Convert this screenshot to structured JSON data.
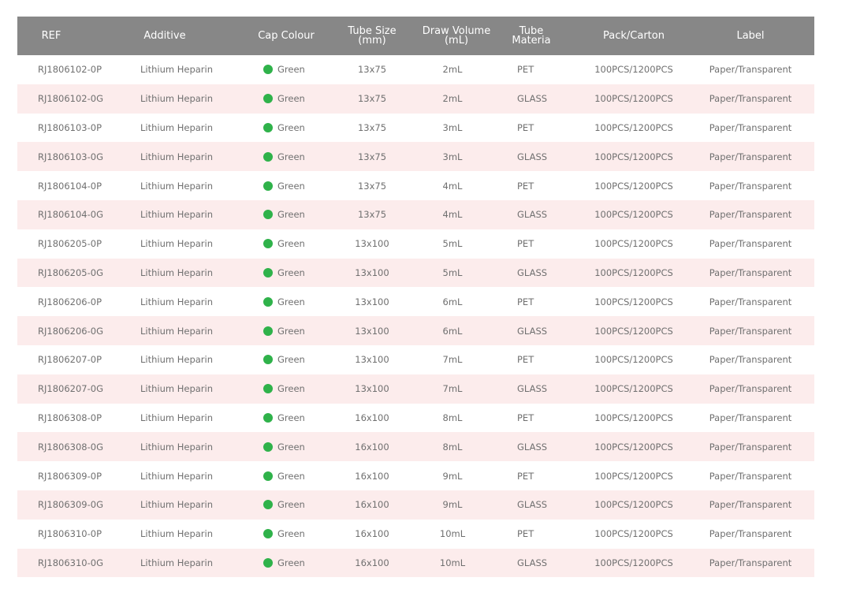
{
  "colors": {
    "header_bg": "#878787",
    "alt_row_bg": "#fcecec",
    "cap_green": "#2fb24a"
  },
  "header": {
    "ref": "REF",
    "additive": "Additive",
    "cap_colour": "Cap Colour",
    "tube_size": [
      "Tube Size",
      "(mm)"
    ],
    "draw_volume": [
      "Draw Volume",
      "(mL)"
    ],
    "tube_material": [
      "Tube",
      "Materia"
    ],
    "pack": "Pack/Carton",
    "label": "Label"
  },
  "rows": [
    {
      "ref": "RJ1806102-0P",
      "additive": "Lithium Heparin",
      "cap": "Green",
      "size": "13x75",
      "volume": "2mL",
      "material": "PET",
      "pack": "100PCS/1200PCS",
      "label": "Paper/Transparent"
    },
    {
      "ref": "RJ1806102-0G",
      "additive": "Lithium Heparin",
      "cap": "Green",
      "size": "13x75",
      "volume": "2mL",
      "material": "GLASS",
      "pack": "100PCS/1200PCS",
      "label": "Paper/Transparent"
    },
    {
      "ref": "RJ1806103-0P",
      "additive": "Lithium Heparin",
      "cap": "Green",
      "size": "13x75",
      "volume": "3mL",
      "material": "PET",
      "pack": "100PCS/1200PCS",
      "label": "Paper/Transparent"
    },
    {
      "ref": "RJ1806103-0G",
      "additive": "Lithium Heparin",
      "cap": "Green",
      "size": "13x75",
      "volume": "3mL",
      "material": "GLASS",
      "pack": "100PCS/1200PCS",
      "label": "Paper/Transparent"
    },
    {
      "ref": "RJ1806104-0P",
      "additive": "Lithium Heparin",
      "cap": "Green",
      "size": "13x75",
      "volume": "4mL",
      "material": "PET",
      "pack": "100PCS/1200PCS",
      "label": "Paper/Transparent"
    },
    {
      "ref": "RJ1806104-0G",
      "additive": "Lithium Heparin",
      "cap": "Green",
      "size": "13x75",
      "volume": "4mL",
      "material": "GLASS",
      "pack": "100PCS/1200PCS",
      "label": "Paper/Transparent"
    },
    {
      "ref": "RJ1806205-0P",
      "additive": "Lithium Heparin",
      "cap": "Green",
      "size": "13x100",
      "volume": "5mL",
      "material": "PET",
      "pack": "100PCS/1200PCS",
      "label": "Paper/Transparent"
    },
    {
      "ref": "RJ1806205-0G",
      "additive": "Lithium Heparin",
      "cap": "Green",
      "size": "13x100",
      "volume": "5mL",
      "material": "GLASS",
      "pack": "100PCS/1200PCS",
      "label": "Paper/Transparent"
    },
    {
      "ref": "RJ1806206-0P",
      "additive": "Lithium Heparin",
      "cap": "Green",
      "size": "13x100",
      "volume": "6mL",
      "material": "PET",
      "pack": "100PCS/1200PCS",
      "label": "Paper/Transparent"
    },
    {
      "ref": "RJ1806206-0G",
      "additive": "Lithium Heparin",
      "cap": "Green",
      "size": "13x100",
      "volume": "6mL",
      "material": "GLASS",
      "pack": "100PCS/1200PCS",
      "label": "Paper/Transparent"
    },
    {
      "ref": "RJ1806207-0P",
      "additive": "Lithium Heparin",
      "cap": "Green",
      "size": "13x100",
      "volume": "7mL",
      "material": "PET",
      "pack": "100PCS/1200PCS",
      "label": "Paper/Transparent"
    },
    {
      "ref": "RJ1806207-0G",
      "additive": "Lithium Heparin",
      "cap": "Green",
      "size": "13x100",
      "volume": "7mL",
      "material": "GLASS",
      "pack": "100PCS/1200PCS",
      "label": "Paper/Transparent"
    },
    {
      "ref": "RJ1806308-0P",
      "additive": "Lithium Heparin",
      "cap": "Green",
      "size": "16x100",
      "volume": "8mL",
      "material": "PET",
      "pack": "100PCS/1200PCS",
      "label": "Paper/Transparent"
    },
    {
      "ref": "RJ1806308-0G",
      "additive": "Lithium Heparin",
      "cap": "Green",
      "size": "16x100",
      "volume": "8mL",
      "material": "GLASS",
      "pack": "100PCS/1200PCS",
      "label": "Paper/Transparent"
    },
    {
      "ref": "RJ1806309-0P",
      "additive": "Lithium Heparin",
      "cap": "Green",
      "size": "16x100",
      "volume": "9mL",
      "material": "PET",
      "pack": "100PCS/1200PCS",
      "label": "Paper/Transparent"
    },
    {
      "ref": "RJ1806309-0G",
      "additive": "Lithium Heparin",
      "cap": "Green",
      "size": "16x100",
      "volume": "9mL",
      "material": "GLASS",
      "pack": "100PCS/1200PCS",
      "label": "Paper/Transparent"
    },
    {
      "ref": "RJ1806310-0P",
      "additive": "Lithium Heparin",
      "cap": "Green",
      "size": "16x100",
      "volume": "10mL",
      "material": "PET",
      "pack": "100PCS/1200PCS",
      "label": "Paper/Transparent"
    },
    {
      "ref": "RJ1806310-0G",
      "additive": "Lithium Heparin",
      "cap": "Green",
      "size": "16x100",
      "volume": "10mL",
      "material": "GLASS",
      "pack": "100PCS/1200PCS",
      "label": "Paper/Transparent"
    }
  ]
}
